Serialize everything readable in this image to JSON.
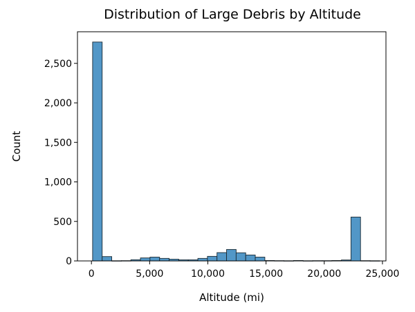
{
  "chart_data": {
    "type": "bar",
    "title": "Distribution of Large Debris by Altitude",
    "xlabel": "Altitude (mi)",
    "ylabel": "Count",
    "xlim": [
      -1200,
      25300
    ],
    "ylim": [
      0,
      2900
    ],
    "bar_color": "#5297c7",
    "edge_color": "#1b2a33",
    "x_ticks": [
      {
        "value": 0,
        "label": "0"
      },
      {
        "value": 5000,
        "label": "5,000"
      },
      {
        "value": 10000,
        "label": "10,000"
      },
      {
        "value": 15000,
        "label": "15,000"
      },
      {
        "value": 20000,
        "label": "20,000"
      },
      {
        "value": 25000,
        "label": "25,000"
      }
    ],
    "y_ticks": [
      {
        "value": 0,
        "label": "0"
      },
      {
        "value": 500,
        "label": "500"
      },
      {
        "value": 1000,
        "label": "1,000"
      },
      {
        "value": 1500,
        "label": "1,500"
      },
      {
        "value": 2000,
        "label": "2,000"
      },
      {
        "value": 2500,
        "label": "2,500"
      }
    ],
    "bins": [
      {
        "x0": 100,
        "x1": 922,
        "count": 2770
      },
      {
        "x0": 922,
        "x1": 1744,
        "count": 55
      },
      {
        "x0": 1744,
        "x1": 2566,
        "count": 2
      },
      {
        "x0": 2566,
        "x1": 3388,
        "count": 3
      },
      {
        "x0": 3388,
        "x1": 4210,
        "count": 15
      },
      {
        "x0": 4210,
        "x1": 5032,
        "count": 38
      },
      {
        "x0": 5032,
        "x1": 5854,
        "count": 48
      },
      {
        "x0": 5854,
        "x1": 6676,
        "count": 32
      },
      {
        "x0": 6676,
        "x1": 7498,
        "count": 22
      },
      {
        "x0": 7498,
        "x1": 8320,
        "count": 14
      },
      {
        "x0": 8320,
        "x1": 9142,
        "count": 14
      },
      {
        "x0": 9142,
        "x1": 9964,
        "count": 32
      },
      {
        "x0": 9964,
        "x1": 10786,
        "count": 58
      },
      {
        "x0": 10786,
        "x1": 11608,
        "count": 105
      },
      {
        "x0": 11608,
        "x1": 12430,
        "count": 145
      },
      {
        "x0": 12430,
        "x1": 13252,
        "count": 103
      },
      {
        "x0": 13252,
        "x1": 14074,
        "count": 75
      },
      {
        "x0": 14074,
        "x1": 14896,
        "count": 48
      },
      {
        "x0": 14896,
        "x1": 15718,
        "count": 5
      },
      {
        "x0": 15718,
        "x1": 16540,
        "count": 3
      },
      {
        "x0": 16540,
        "x1": 17362,
        "count": 2
      },
      {
        "x0": 17362,
        "x1": 18184,
        "count": 5
      },
      {
        "x0": 18184,
        "x1": 19006,
        "count": 2
      },
      {
        "x0": 19006,
        "x1": 19828,
        "count": 3
      },
      {
        "x0": 19828,
        "x1": 20650,
        "count": 3
      },
      {
        "x0": 20650,
        "x1": 21472,
        "count": 5
      },
      {
        "x0": 21472,
        "x1": 22294,
        "count": 12
      },
      {
        "x0": 22294,
        "x1": 23116,
        "count": 555
      },
      {
        "x0": 23116,
        "x1": 23938,
        "count": 3
      },
      {
        "x0": 23938,
        "x1": 24760,
        "count": 2
      }
    ]
  }
}
